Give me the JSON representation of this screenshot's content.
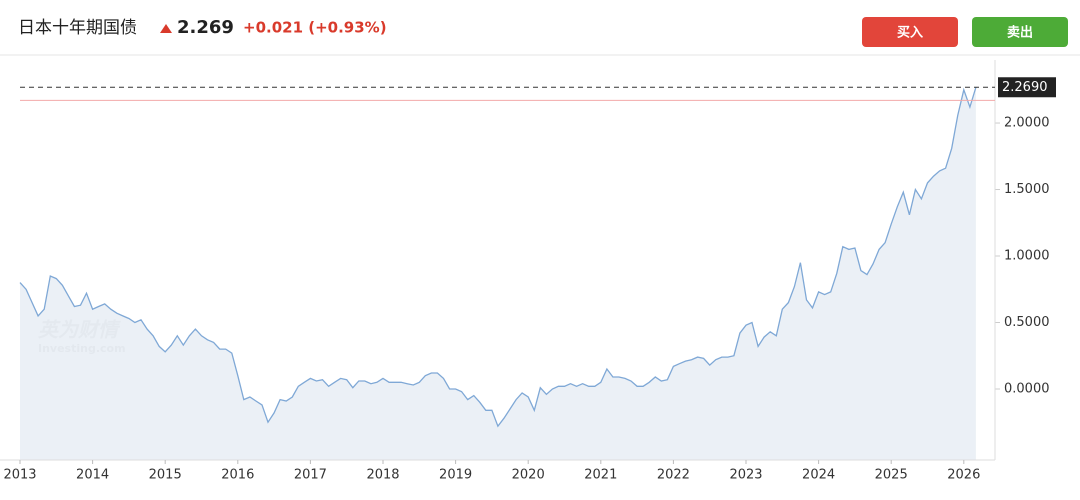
{
  "header": {
    "title": "日本十年期国债",
    "price": "2.269",
    "change": "+0.021 (+0.93%)"
  },
  "buttons": {
    "buy": "买入",
    "sell": "卖出"
  },
  "watermark": {
    "brand": "英为财情",
    "site": "Investing.com"
  },
  "chart_data": {
    "type": "area",
    "categories": [
      "2013",
      null,
      null,
      null,
      null,
      null,
      null,
      null,
      null,
      null,
      null,
      null,
      "2014",
      null,
      null,
      null,
      null,
      null,
      null,
      null,
      null,
      null,
      null,
      null,
      "2015",
      null,
      null,
      null,
      null,
      null,
      null,
      null,
      null,
      null,
      null,
      null,
      "2016",
      null,
      null,
      null,
      null,
      null,
      null,
      null,
      null,
      null,
      null,
      null,
      "2017",
      null,
      null,
      null,
      null,
      null,
      null,
      null,
      null,
      null,
      null,
      null,
      "2018",
      null,
      null,
      null,
      null,
      null,
      null,
      null,
      null,
      null,
      null,
      null,
      "2019",
      null,
      null,
      null,
      null,
      null,
      null,
      null,
      null,
      null,
      null,
      null,
      "2020",
      null,
      null,
      null,
      null,
      null,
      null,
      null,
      null,
      null,
      null,
      null,
      "2021",
      null,
      null,
      null,
      null,
      null,
      null,
      null,
      null,
      null,
      null,
      null,
      "2022",
      null,
      null,
      null,
      null,
      null,
      null,
      null,
      null,
      null,
      null,
      null,
      "2023",
      null,
      null,
      null,
      null,
      null,
      null,
      null,
      null,
      null,
      null,
      null,
      "2024",
      null,
      null,
      null,
      null,
      null,
      null,
      null,
      null,
      null,
      null,
      null,
      "2025",
      null,
      null,
      null,
      null,
      null,
      null,
      null,
      null,
      null,
      null,
      null,
      "2026",
      null,
      null
    ],
    "values": [
      0.8,
      0.75,
      0.65,
      0.55,
      0.6,
      0.85,
      0.83,
      0.78,
      0.7,
      0.62,
      0.63,
      0.72,
      0.6,
      0.62,
      0.64,
      0.6,
      0.57,
      0.55,
      0.53,
      0.5,
      0.52,
      0.45,
      0.4,
      0.32,
      0.28,
      0.33,
      0.4,
      0.33,
      0.4,
      0.45,
      0.4,
      0.37,
      0.35,
      0.3,
      0.3,
      0.27,
      0.1,
      -0.08,
      -0.06,
      -0.09,
      -0.12,
      -0.25,
      -0.18,
      -0.08,
      -0.09,
      -0.06,
      0.02,
      0.05,
      0.08,
      0.06,
      0.07,
      0.02,
      0.05,
      0.08,
      0.07,
      0.01,
      0.06,
      0.06,
      0.04,
      0.05,
      0.08,
      0.05,
      0.05,
      0.05,
      0.04,
      0.03,
      0.05,
      0.1,
      0.12,
      0.12,
      0.08,
      0.0,
      0.0,
      -0.02,
      -0.08,
      -0.05,
      -0.1,
      -0.16,
      -0.16,
      -0.28,
      -0.22,
      -0.15,
      -0.08,
      -0.03,
      -0.06,
      -0.16,
      0.01,
      -0.04,
      0.0,
      0.02,
      0.02,
      0.04,
      0.02,
      0.04,
      0.02,
      0.02,
      0.05,
      0.15,
      0.09,
      0.09,
      0.08,
      0.06,
      0.02,
      0.02,
      0.05,
      0.09,
      0.06,
      0.07,
      0.17,
      0.19,
      0.21,
      0.22,
      0.24,
      0.23,
      0.18,
      0.22,
      0.24,
      0.24,
      0.25,
      0.42,
      0.48,
      0.5,
      0.32,
      0.39,
      0.43,
      0.4,
      0.6,
      0.65,
      0.77,
      0.95,
      0.67,
      0.61,
      0.73,
      0.71,
      0.73,
      0.87,
      1.07,
      1.05,
      1.06,
      0.89,
      0.86,
      0.94,
      1.05,
      1.1,
      1.24,
      1.37,
      1.48,
      1.31,
      1.5,
      1.43,
      1.55,
      1.6,
      1.64,
      1.66,
      1.81,
      2.06,
      2.25,
      2.12,
      2.269
    ],
    "color": "#7fa8d6",
    "fill": "#e9eef5",
    "ylim": [
      -0.534,
      2.474
    ],
    "yticks": [
      {
        "value": 0,
        "label": "0.0000"
      },
      {
        "value": 0.5,
        "label": "0.5000"
      },
      {
        "value": 1,
        "label": "1.0000"
      },
      {
        "value": 1.5,
        "label": "1.5000"
      },
      {
        "value": 2,
        "label": "2.0000"
      }
    ],
    "last_value": {
      "value": 2.269,
      "label": "2.2690"
    },
    "reference_line": 2.17
  }
}
